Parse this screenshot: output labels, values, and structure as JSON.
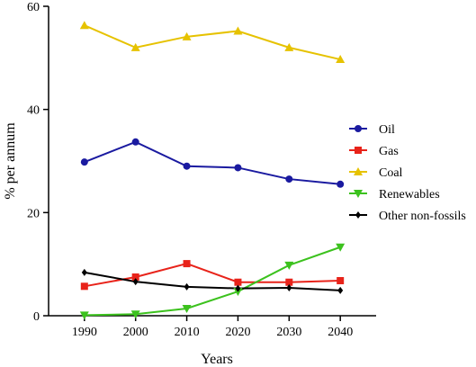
{
  "chart_data": {
    "type": "line",
    "title": "",
    "xlabel": "Years",
    "ylabel": "% per annum",
    "x": [
      1990,
      2000,
      2010,
      2020,
      2030,
      2040
    ],
    "xlim": [
      1983,
      2047
    ],
    "ylim": [
      0,
      60
    ],
    "yticks": [
      0,
      20,
      40,
      60
    ],
    "grid": false,
    "legend_position": "right",
    "series": [
      {
        "name": "Oil",
        "color": "#1a1aa0",
        "marker": "circle",
        "values": [
          29.8,
          33.7,
          29.0,
          28.7,
          26.5,
          25.5
        ]
      },
      {
        "name": "Gas",
        "color": "#e8231a",
        "marker": "square",
        "values": [
          5.7,
          7.5,
          10.1,
          6.5,
          6.5,
          6.8
        ]
      },
      {
        "name": "Coal",
        "color": "#e6c200",
        "marker": "triangle-up",
        "values": [
          56.3,
          52.0,
          54.1,
          55.2,
          52.0,
          49.7
        ]
      },
      {
        "name": "Renewables",
        "color": "#3cc21e",
        "marker": "triangle-down",
        "values": [
          0.1,
          0.3,
          1.4,
          4.7,
          9.8,
          13.3
        ]
      },
      {
        "name": "Other non-fossils",
        "color": "#000000",
        "marker": "diamond",
        "values": [
          8.4,
          6.6,
          5.6,
          5.3,
          5.4,
          4.9
        ]
      }
    ]
  }
}
